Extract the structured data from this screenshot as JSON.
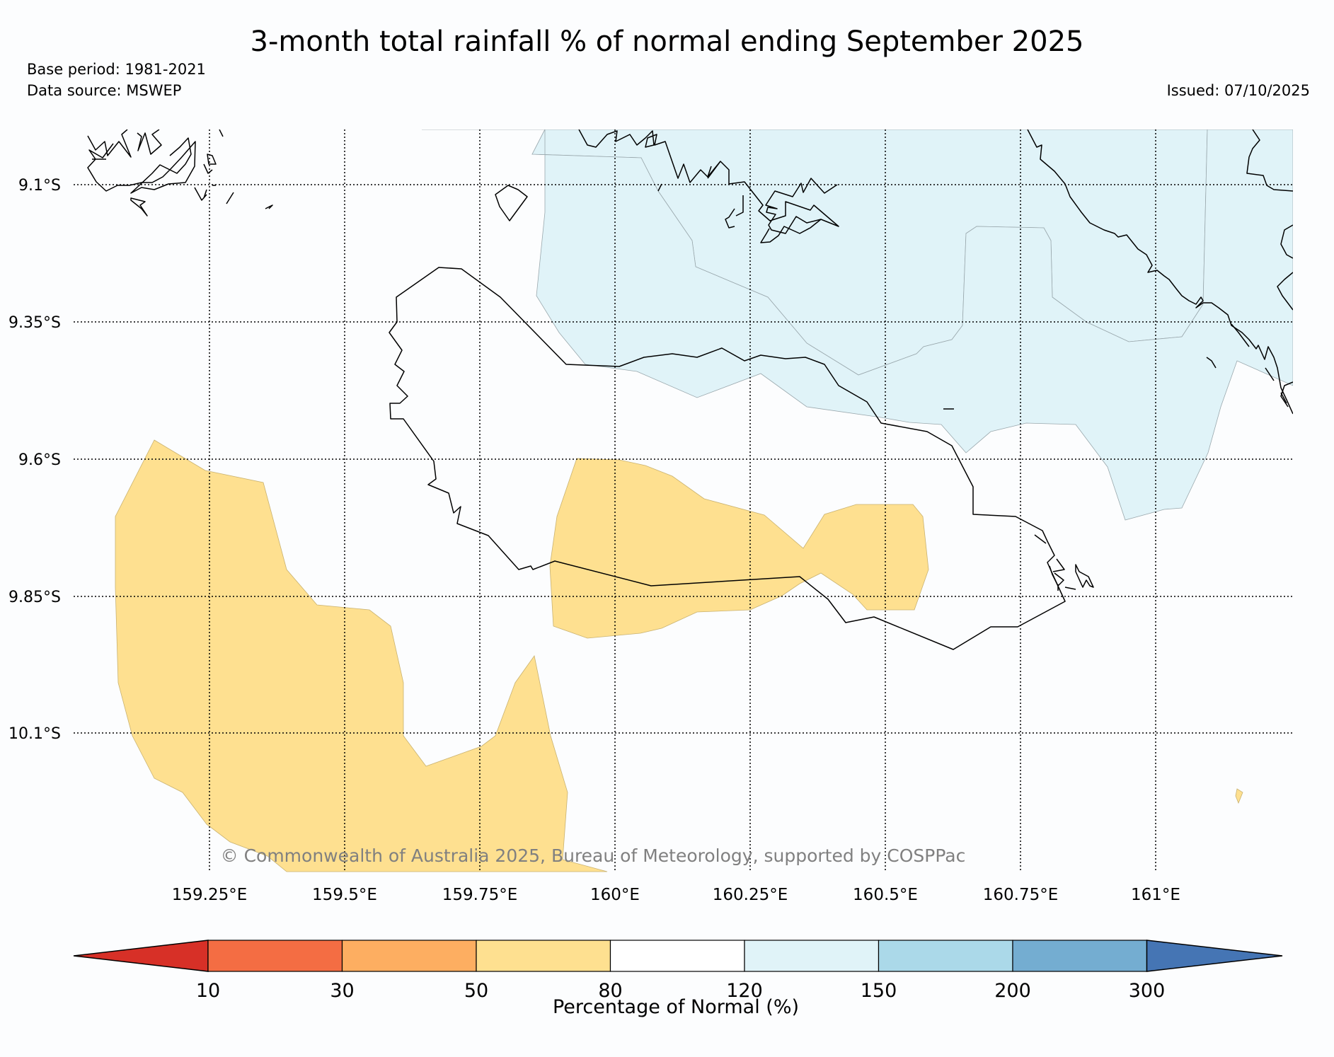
{
  "title": "3-month total rainfall % of normal ending September 2025",
  "base_period": "Base period: 1981-2021",
  "data_source": "Data source: MSWEP",
  "issued": "Issued: 07/10/2025",
  "copyright": "© Commonwealth of Australia 2025, Bureau of Meteorology, supported by COSPPac",
  "map": {
    "lat_labels": [
      "9.1°S",
      "9.35°S",
      "9.6°S",
      "9.85°S",
      "10.1°S"
    ],
    "lon_labels": [
      "159.25°E",
      "159.5°E",
      "159.75°E",
      "160°E",
      "160.25°E",
      "160.5°E",
      "160.75°E",
      "161°E"
    ]
  },
  "legend": {
    "label": "Percentage of Normal (%)",
    "ticks": [
      "10",
      "30",
      "50",
      "80",
      "120",
      "150",
      "200",
      "300"
    ],
    "colors": [
      "#d73027",
      "#f46d43",
      "#fdae61",
      "#fee090",
      "#ffffff",
      "#e0f3f8",
      "#abd9e9",
      "#74add1",
      "#4575b4"
    ],
    "dry_color": "#fee090",
    "wet_color": "#e0f3f8"
  }
}
